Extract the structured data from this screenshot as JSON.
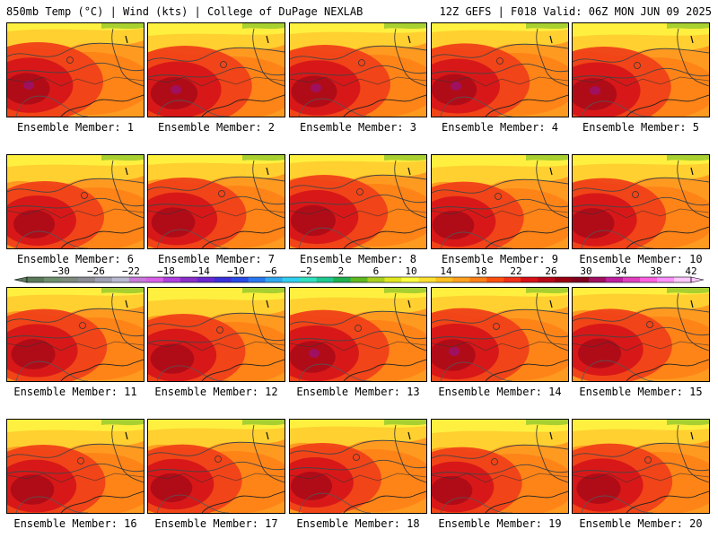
{
  "header": {
    "left": "850mb Temp (°C) | Wind (kts) | College of DuPage NEXLAB",
    "right": "12Z GEFS | F018 Valid: 06Z MON JUN 09 2025"
  },
  "members": [
    {
      "label": "Ensemble Member: 1",
      "warmth": 0.8
    },
    {
      "label": "Ensemble Member: 2",
      "warmth": 0.85
    },
    {
      "label": "Ensemble Member: 3",
      "warmth": 0.8
    },
    {
      "label": "Ensemble Member: 4",
      "warmth": 0.78
    },
    {
      "label": "Ensemble Member: 5",
      "warmth": 0.85
    },
    {
      "label": "Ensemble Member: 6",
      "warmth": 0.6
    },
    {
      "label": "Ensemble Member: 7",
      "warmth": 0.7
    },
    {
      "label": "Ensemble Member: 8",
      "warmth": 0.75
    },
    {
      "label": "Ensemble Member: 9",
      "warmth": 0.62
    },
    {
      "label": "Ensemble Member: 10",
      "warmth": 0.72
    },
    {
      "label": "Ensemble Member: 11",
      "warmth": 0.72
    },
    {
      "label": "Ensemble Member: 12",
      "warmth": 0.7
    },
    {
      "label": "Ensemble Member: 13",
      "warmth": 0.82
    },
    {
      "label": "Ensemble Member: 14",
      "warmth": 0.82
    },
    {
      "label": "Ensemble Member: 15",
      "warmth": 0.68
    },
    {
      "label": "Ensemble Member: 16",
      "warmth": 0.7
    },
    {
      "label": "Ensemble Member: 17",
      "warmth": 0.62
    },
    {
      "label": "Ensemble Member: 18",
      "warmth": 0.6
    },
    {
      "label": "Ensemble Member: 19",
      "warmth": 0.62
    },
    {
      "label": "Ensemble Member: 20",
      "warmth": 0.72
    }
  ],
  "colorbar": {
    "ticks": [
      "−30",
      "−26",
      "−22",
      "−18",
      "−14",
      "−10",
      "−6",
      "−2",
      "2",
      "6",
      "10",
      "14",
      "18",
      "22",
      "26",
      "30",
      "34",
      "38",
      "42"
    ],
    "colors": [
      "#5a7a5a",
      "#6f8f6f",
      "#7f8a7f",
      "#8c8c94",
      "#a0a0b4",
      "#b8b8d0",
      "#c87ad8",
      "#d860e8",
      "#b040e0",
      "#8a30c8",
      "#6a28d0",
      "#3a30d8",
      "#2a4ae8",
      "#2a78f0",
      "#30a8f0",
      "#30d0f0",
      "#30e0c0",
      "#20c890",
      "#20b050",
      "#60b820",
      "#a8d020",
      "#e0e820",
      "#ffff40",
      "#ffe030",
      "#ffc020",
      "#ffa020",
      "#ff8018",
      "#ff5010",
      "#f03018",
      "#d81018",
      "#b80818",
      "#980010",
      "#800020",
      "#a01060",
      "#c020a0",
      "#e040c0",
      "#ff60e0",
      "#ff90ff",
      "#ffc8ff"
    ]
  }
}
